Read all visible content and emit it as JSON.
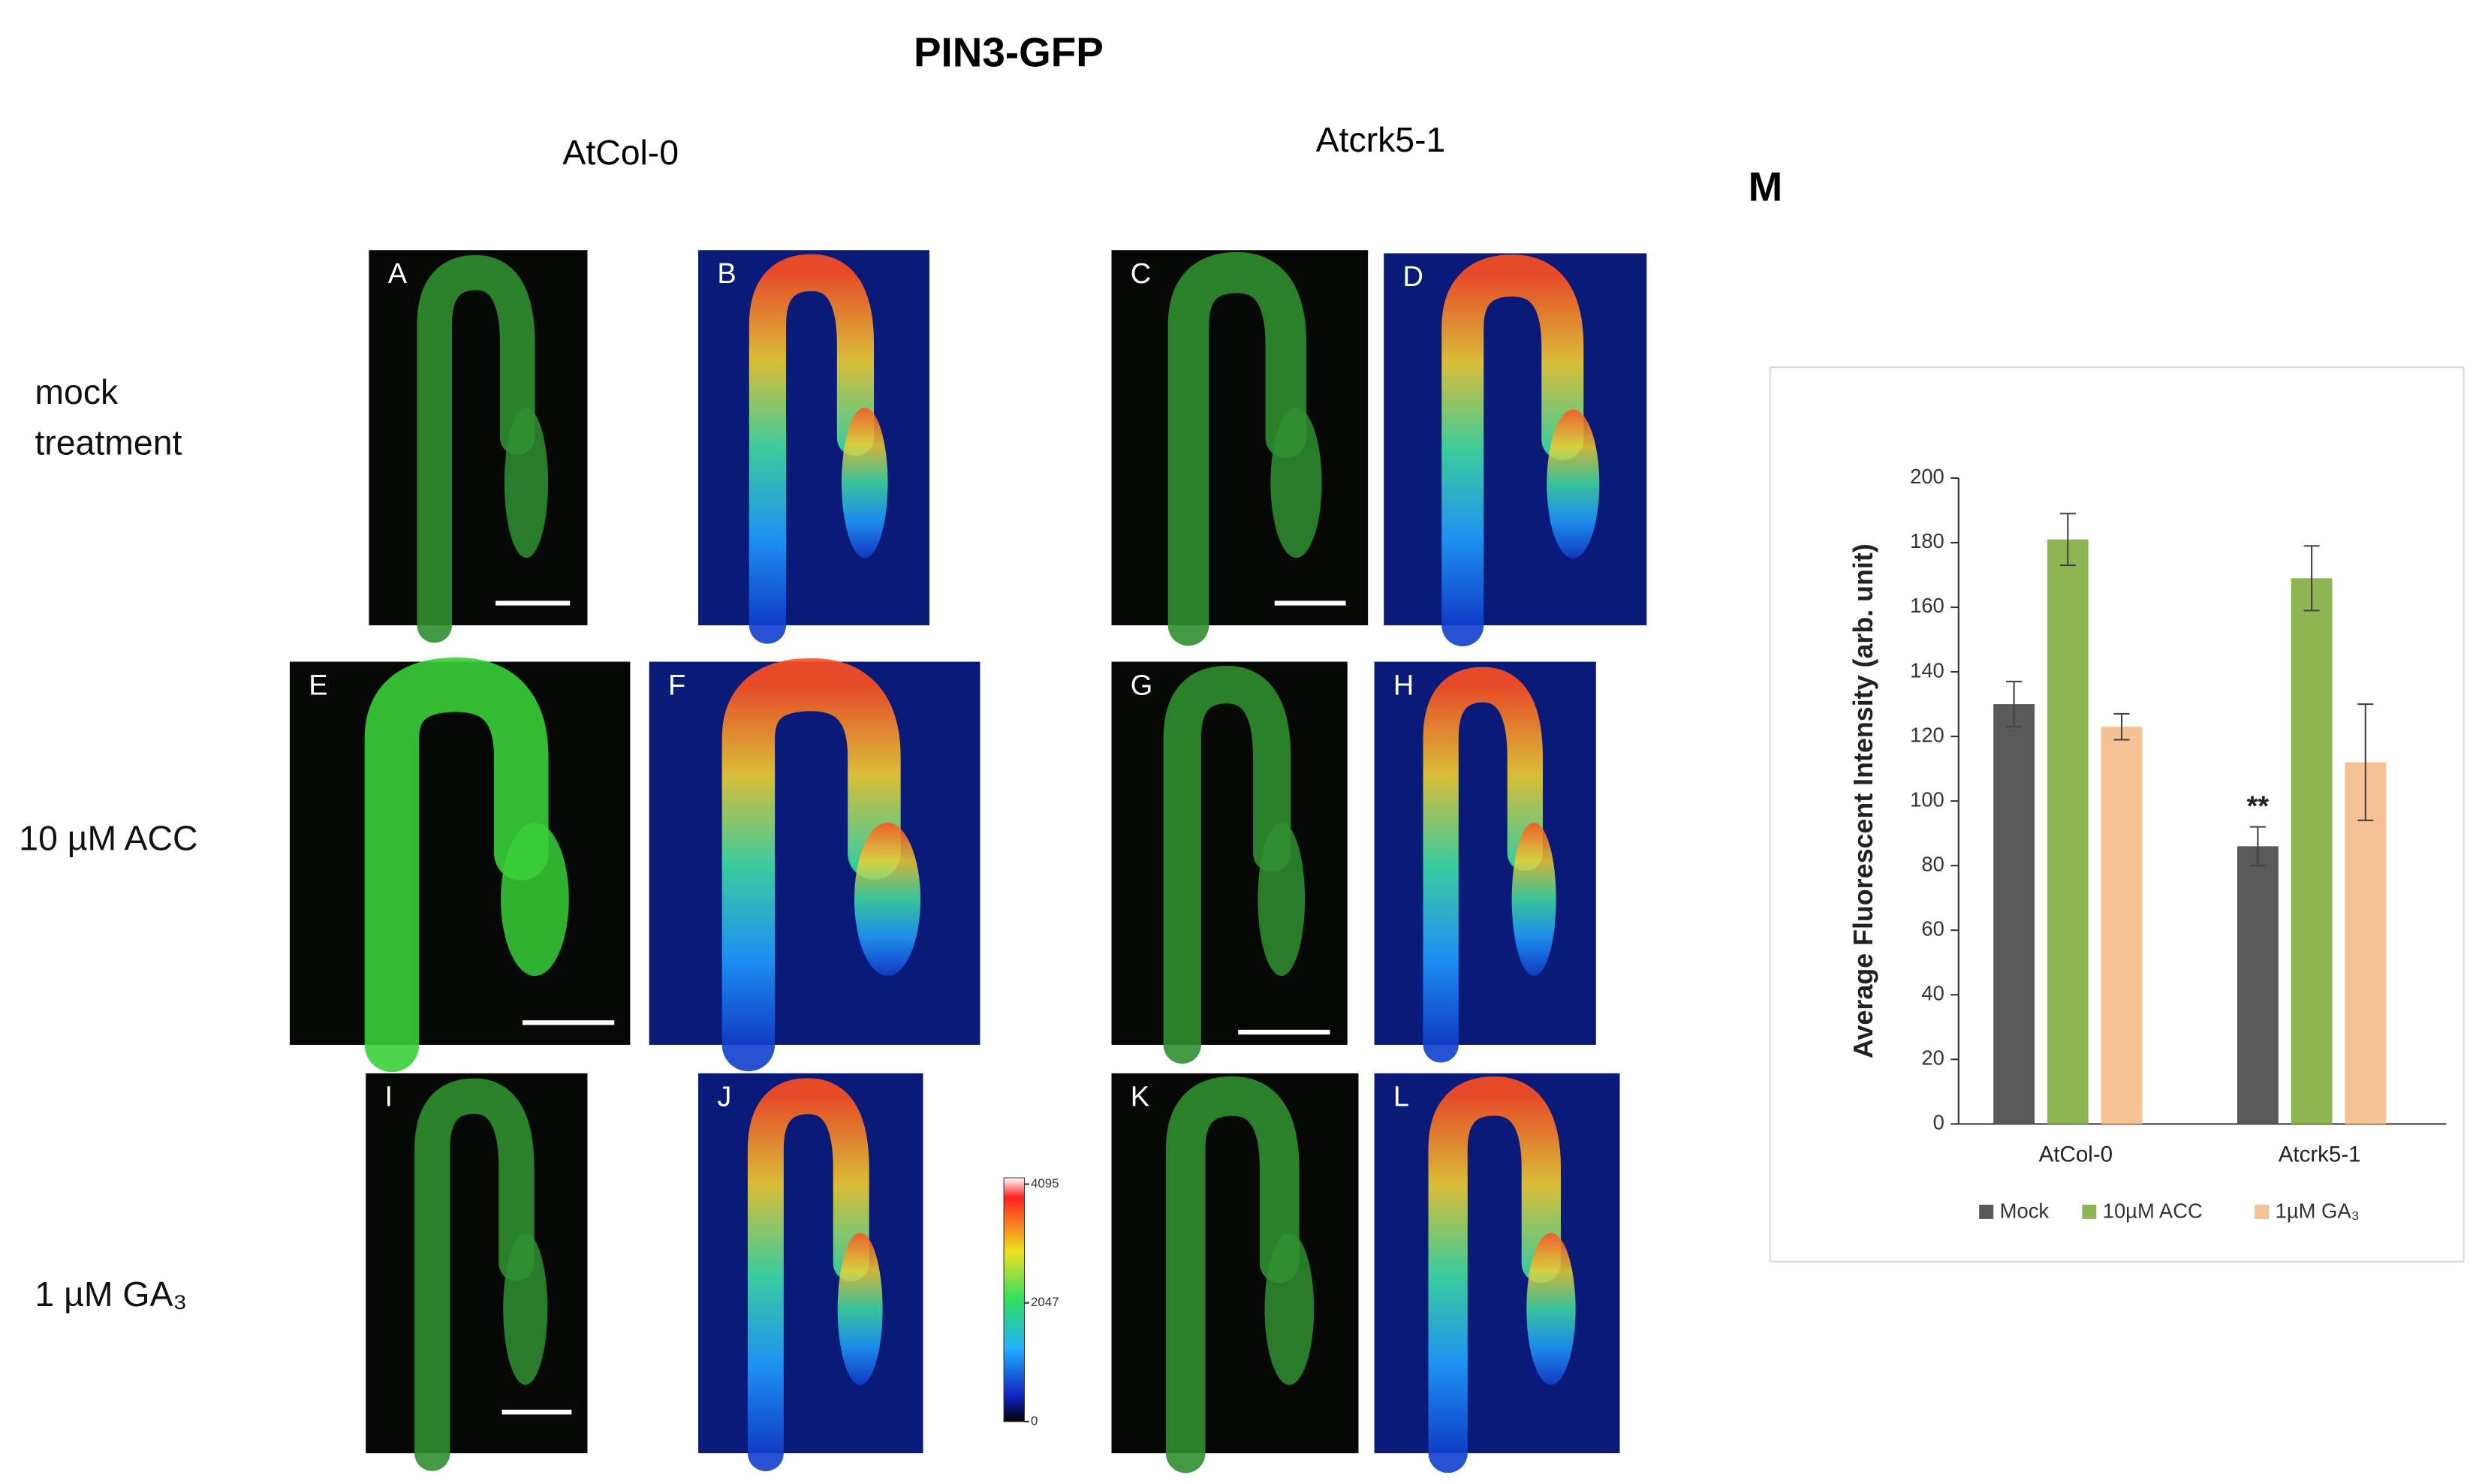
{
  "figure_title": "PIN3-GFP",
  "columns": [
    "AtCol-0",
    "Atcrk5-1"
  ],
  "rows": [
    "mock treatment",
    "10 µM ACC",
    "1 µM GA₃"
  ],
  "panels": [
    "A",
    "B",
    "C",
    "D",
    "E",
    "F",
    "G",
    "H",
    "I",
    "J",
    "K",
    "L"
  ],
  "colorbar": {
    "ticks": [
      4095,
      2047,
      0
    ]
  },
  "chart_label": "M",
  "chart_data": {
    "type": "bar",
    "y_label": "Average Fluorescent Intensity (arb. unit)",
    "categories": [
      "AtCol-0",
      "Atcrk5-1"
    ],
    "series": [
      {
        "name": "Mock",
        "color": "#595959",
        "values": [
          130,
          86
        ],
        "errors": [
          7,
          6
        ]
      },
      {
        "name": "10µM ACC",
        "color": "#8db552",
        "values": [
          181,
          169
        ],
        "errors": [
          8,
          10
        ]
      },
      {
        "name": "1µM GA₃",
        "color": "#f6c193",
        "values": [
          123,
          112
        ],
        "errors": [
          4,
          18
        ]
      }
    ],
    "annotation": "**",
    "ylim": [
      0,
      200
    ],
    "yticks": [
      0,
      20,
      40,
      60,
      80,
      100,
      120,
      140,
      160,
      180,
      200
    ]
  }
}
